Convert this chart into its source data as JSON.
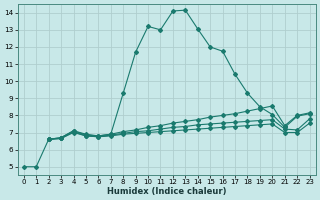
{
  "xlabel": "Humidex (Indice chaleur)",
  "bg_color": "#c8e8e8",
  "line_color": "#1a7a6e",
  "grid_color": "#b0cece",
  "xlim": [
    -0.5,
    23.5
  ],
  "ylim": [
    4.5,
    14.5
  ],
  "xticks": [
    0,
    1,
    2,
    3,
    4,
    5,
    6,
    7,
    8,
    9,
    10,
    11,
    12,
    13,
    14,
    15,
    16,
    17,
    18,
    19,
    20,
    21,
    22,
    23
  ],
  "yticks": [
    5,
    6,
    7,
    8,
    9,
    10,
    11,
    12,
    13,
    14
  ],
  "line1_x": [
    0,
    1,
    2,
    3,
    4,
    5,
    6,
    7,
    8,
    9,
    10,
    11,
    12,
    13,
    14,
    15,
    16,
    17,
    18,
    19,
    20,
    21,
    22,
    23
  ],
  "line1_y": [
    5.0,
    5.0,
    6.6,
    6.7,
    7.1,
    6.9,
    6.8,
    6.9,
    9.3,
    11.7,
    13.2,
    13.0,
    14.1,
    14.15,
    13.05,
    12.0,
    11.75,
    10.4,
    9.3,
    8.5,
    8.05,
    7.3,
    7.95,
    8.1
  ],
  "line2_x": [
    2,
    3,
    4,
    5,
    6,
    7,
    8,
    9,
    10,
    11,
    12,
    13,
    14,
    15,
    16,
    17,
    18,
    19,
    20,
    21,
    22,
    23
  ],
  "line2_y": [
    6.6,
    6.7,
    7.1,
    6.85,
    6.8,
    6.9,
    7.05,
    7.15,
    7.3,
    7.4,
    7.55,
    7.65,
    7.75,
    7.9,
    8.0,
    8.1,
    8.25,
    8.4,
    8.55,
    7.4,
    8.0,
    8.15
  ],
  "line3_x": [
    2,
    3,
    4,
    5,
    6,
    7,
    8,
    9,
    10,
    11,
    12,
    13,
    14,
    15,
    16,
    17,
    18,
    19,
    20,
    21,
    22,
    23
  ],
  "line3_y": [
    6.6,
    6.65,
    7.05,
    6.8,
    6.75,
    6.85,
    6.95,
    7.05,
    7.1,
    7.2,
    7.3,
    7.35,
    7.45,
    7.5,
    7.55,
    7.6,
    7.65,
    7.7,
    7.75,
    7.2,
    7.15,
    7.8
  ],
  "line4_x": [
    2,
    3,
    4,
    5,
    6,
    7,
    8,
    9,
    10,
    11,
    12,
    13,
    14,
    15,
    16,
    17,
    18,
    19,
    20,
    21,
    22,
    23
  ],
  "line4_y": [
    6.6,
    6.65,
    7.0,
    6.8,
    6.75,
    6.8,
    6.9,
    6.95,
    7.0,
    7.05,
    7.1,
    7.15,
    7.2,
    7.25,
    7.3,
    7.35,
    7.4,
    7.45,
    7.5,
    7.0,
    7.0,
    7.55
  ]
}
